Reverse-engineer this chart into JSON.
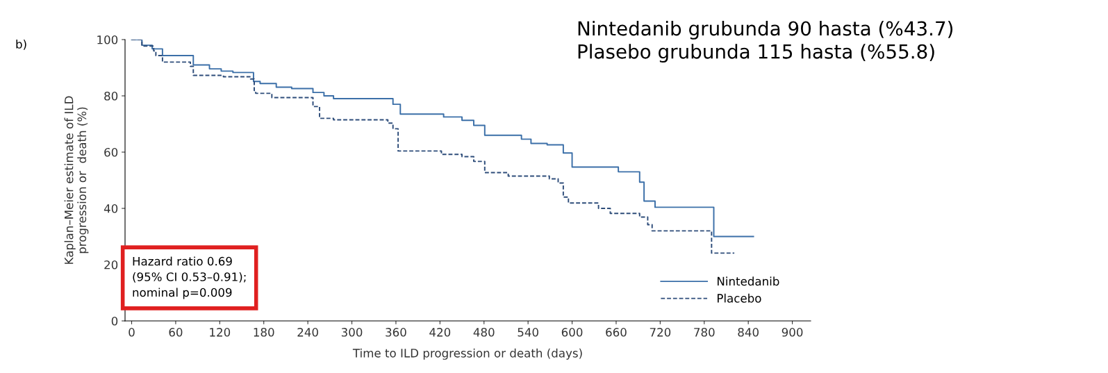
{
  "chart_data": {
    "type": "step",
    "xlabel": "Time to ILD progression or death (days)",
    "ylabel": "Kaplan–Meier estimate of ILD\nprogression or  death (%)",
    "xlim": [
      -9,
      925
    ],
    "ylim": [
      0,
      100
    ],
    "xticks": [
      0,
      60,
      120,
      180,
      240,
      300,
      360,
      420,
      480,
      540,
      600,
      660,
      720,
      780,
      840,
      900
    ],
    "yticks": [
      0,
      20,
      40,
      60,
      80,
      100
    ],
    "grid": false,
    "legend": "bottom right",
    "series": [
      {
        "name": "Nintedanib",
        "color": "#3b6fa8",
        "line_style": "solid",
        "x": [
          0,
          14,
          28,
          42,
          84,
          106,
          122,
          138,
          166,
          175,
          197,
          218,
          247,
          262,
          275,
          356,
          366,
          425,
          450,
          466,
          481,
          531,
          544,
          566,
          588,
          600,
          663,
          692,
          698,
          713,
          793,
          847
        ],
        "values": [
          100,
          98,
          96.7,
          94.3,
          91,
          89.6,
          88.8,
          88.3,
          85.1,
          84.4,
          83.1,
          82.6,
          81.2,
          80,
          79,
          77,
          73.5,
          72.5,
          71.3,
          69.5,
          66,
          64.6,
          63.1,
          62.6,
          59.7,
          54.7,
          53,
          49.3,
          42.6,
          40.4,
          30,
          30
        ]
      },
      {
        "name": "Placebo",
        "color": "#2e4d7a",
        "line_style": "dashed",
        "x": [
          0,
          14,
          30,
          33,
          42,
          80,
          84,
          125,
          162,
          167,
          169,
          191,
          247,
          256,
          275,
          349,
          356,
          363,
          422,
          450,
          466,
          481,
          513,
          569,
          581,
          588,
          595,
          636,
          652,
          692,
          703,
          709,
          790,
          821
        ],
        "values": [
          100,
          97.7,
          96,
          94.3,
          92,
          90.5,
          87.3,
          86.8,
          86,
          81.9,
          80.9,
          79.4,
          76.2,
          72,
          71.5,
          70.3,
          68.3,
          60.4,
          59.2,
          58.4,
          56.7,
          52.7,
          51.5,
          50.5,
          49,
          44,
          41.9,
          40,
          38.2,
          36.9,
          34.2,
          32,
          24.1,
          24.1
        ]
      }
    ],
    "annotations": [
      "b)",
      "Hazard ratio 0.69\n(95% CI 0.53–0.91);\nnominal p=0.009",
      "Nintedanib grubunda 90 hasta (%43.7)\nPlasebo grubunda 115 hasta (%55.8)"
    ]
  }
}
